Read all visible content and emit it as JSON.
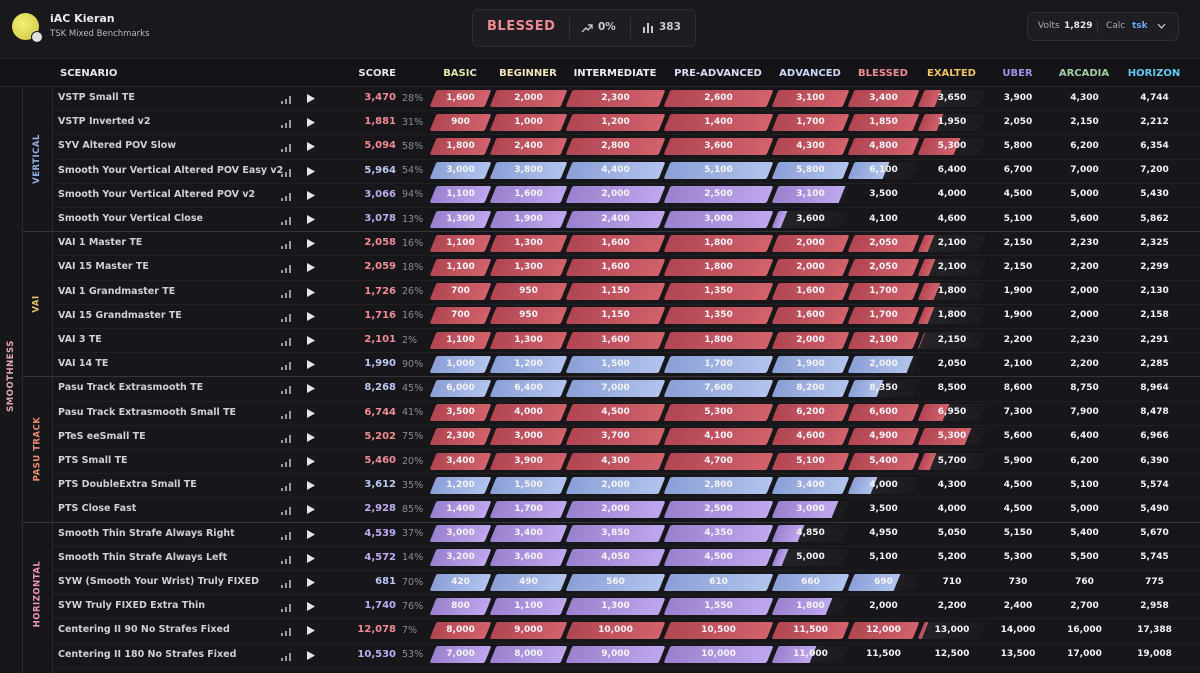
{
  "header": {
    "user_name": "iAC Kieran",
    "benchmark": "TSK Mixed Benchmarks",
    "rank": "BLESSED",
    "progress": "0%",
    "count": "383",
    "volts_label": "Volts",
    "volts": "1,829",
    "calc_label": "Calc",
    "calc": "tsk"
  },
  "table": {
    "columns": [
      "SCENARIO",
      "SCORE",
      "BASIC",
      "BEGINNER",
      "INTERMEDIATE",
      "PRE-ADVANCED",
      "ADVANCED",
      "BLESSED",
      "EXALTED",
      "UBER",
      "ARCADIA",
      "HORIZON"
    ],
    "category": "SMOOTHNESS",
    "groups": [
      {
        "label": "VERTICAL",
        "rows": [
          {
            "scenario": "VSTP Small TE",
            "score": "3,470",
            "percent": "28%",
            "thresholds": [
              "1,600",
              "2,000",
              "2,300",
              "2,600",
              "3,100",
              "3,400",
              "3,650",
              "3,900",
              "4,300",
              "4,744"
            ]
          },
          {
            "scenario": "VSTP Inverted v2",
            "score": "1,881",
            "percent": "31%",
            "thresholds": [
              "900",
              "1,000",
              "1,200",
              "1,400",
              "1,700",
              "1,850",
              "1,950",
              "2,050",
              "2,150",
              "2,212"
            ]
          },
          {
            "scenario": "SYV Altered POV Slow",
            "score": "5,094",
            "percent": "58%",
            "thresholds": [
              "1,800",
              "2,400",
              "2,800",
              "3,600",
              "4,300",
              "4,800",
              "5,300",
              "5,800",
              "6,200",
              "6,354"
            ]
          },
          {
            "scenario": "Smooth Your Vertical Altered POV Easy v2",
            "score": "5,964",
            "percent": "54%",
            "thresholds": [
              "3,000",
              "3,800",
              "4,400",
              "5,100",
              "5,800",
              "6,100",
              "6,400",
              "6,700",
              "7,000",
              "7,200"
            ]
          },
          {
            "scenario": "Smooth Your Vertical Altered POV v2",
            "score": "3,066",
            "percent": "94%",
            "thresholds": [
              "1,100",
              "1,600",
              "2,000",
              "2,500",
              "3,100",
              "3,500",
              "4,000",
              "4,500",
              "5,000",
              "5,430"
            ]
          },
          {
            "scenario": "Smooth Your Vertical Close",
            "score": "3,078",
            "percent": "13%",
            "thresholds": [
              "1,300",
              "1,900",
              "2,400",
              "3,000",
              "3,600",
              "4,100",
              "4,600",
              "5,100",
              "5,600",
              "5,862"
            ]
          }
        ]
      },
      {
        "label": "VAI",
        "rows": [
          {
            "scenario": "VAI 1 Master TE",
            "score": "2,058",
            "percent": "16%",
            "thresholds": [
              "1,100",
              "1,300",
              "1,600",
              "1,800",
              "2,000",
              "2,050",
              "2,100",
              "2,150",
              "2,230",
              "2,325"
            ]
          },
          {
            "scenario": "VAI 15 Master TE",
            "score": "2,059",
            "percent": "18%",
            "thresholds": [
              "1,100",
              "1,300",
              "1,600",
              "1,800",
              "2,000",
              "2,050",
              "2,100",
              "2,150",
              "2,200",
              "2,299"
            ]
          },
          {
            "scenario": "VAI 1 Grandmaster TE",
            "score": "1,726",
            "percent": "26%",
            "thresholds": [
              "700",
              "950",
              "1,150",
              "1,350",
              "1,600",
              "1,700",
              "1,800",
              "1,900",
              "2,000",
              "2,130"
            ]
          },
          {
            "scenario": "VAI 15 Grandmaster TE",
            "score": "1,716",
            "percent": "16%",
            "thresholds": [
              "700",
              "950",
              "1,150",
              "1,350",
              "1,600",
              "1,700",
              "1,800",
              "1,900",
              "2,000",
              "2,158"
            ]
          },
          {
            "scenario": "VAI 3 TE",
            "score": "2,101",
            "percent": "2%",
            "thresholds": [
              "1,100",
              "1,300",
              "1,600",
              "1,800",
              "2,000",
              "2,100",
              "2,150",
              "2,200",
              "2,230",
              "2,291"
            ]
          },
          {
            "scenario": "VAI 14 TE",
            "score": "1,990",
            "percent": "90%",
            "thresholds": [
              "1,000",
              "1,200",
              "1,500",
              "1,700",
              "1,900",
              "2,000",
              "2,050",
              "2,100",
              "2,200",
              "2,285"
            ]
          }
        ]
      },
      {
        "label": "PASU TRACK",
        "rows": [
          {
            "scenario": "Pasu Track Extrasmooth TE",
            "score": "8,268",
            "percent": "45%",
            "thresholds": [
              "6,000",
              "6,400",
              "7,000",
              "7,600",
              "8,200",
              "8,350",
              "8,500",
              "8,600",
              "8,750",
              "8,964"
            ]
          },
          {
            "scenario": "Pasu Track Extrasmooth Small TE",
            "score": "6,744",
            "percent": "41%",
            "thresholds": [
              "3,500",
              "4,000",
              "4,500",
              "5,300",
              "6,200",
              "6,600",
              "6,950",
              "7,300",
              "7,900",
              "8,478"
            ]
          },
          {
            "scenario": "PTeS eeSmall TE",
            "score": "5,202",
            "percent": "75%",
            "thresholds": [
              "2,300",
              "3,000",
              "3,700",
              "4,100",
              "4,600",
              "4,900",
              "5,300",
              "5,600",
              "6,400",
              "6,966"
            ]
          },
          {
            "scenario": "PTS Small TE",
            "score": "5,460",
            "percent": "20%",
            "thresholds": [
              "3,400",
              "3,900",
              "4,300",
              "4,700",
              "5,100",
              "5,400",
              "5,700",
              "5,900",
              "6,200",
              "6,390"
            ]
          },
          {
            "scenario": "PTS DoubleExtra Small TE",
            "score": "3,612",
            "percent": "35%",
            "thresholds": [
              "1,200",
              "1,500",
              "2,000",
              "2,800",
              "3,400",
              "4,000",
              "4,300",
              "4,500",
              "5,100",
              "5,574"
            ]
          },
          {
            "scenario": "PTS Close Fast",
            "score": "2,928",
            "percent": "85%",
            "thresholds": [
              "1,400",
              "1,700",
              "2,000",
              "2,500",
              "3,000",
              "3,500",
              "4,000",
              "4,500",
              "5,000",
              "5,490"
            ]
          }
        ]
      },
      {
        "label": "HORIZONTAL",
        "rows": [
          {
            "scenario": "Smooth Thin Strafe Always Right",
            "score": "4,539",
            "percent": "37%",
            "thresholds": [
              "3,000",
              "3,400",
              "3,850",
              "4,350",
              "4,850",
              "4,950",
              "5,050",
              "5,150",
              "5,400",
              "5,670"
            ]
          },
          {
            "scenario": "Smooth Thin Strafe Always Left",
            "score": "4,572",
            "percent": "14%",
            "thresholds": [
              "3,200",
              "3,600",
              "4,050",
              "4,500",
              "5,000",
              "5,100",
              "5,200",
              "5,300",
              "5,500",
              "5,745"
            ]
          },
          {
            "scenario": "SYW (Smooth Your Wrist) Truly FIXED",
            "score": "681",
            "percent": "70%",
            "thresholds": [
              "420",
              "490",
              "560",
              "610",
              "660",
              "690",
              "710",
              "730",
              "760",
              "775"
            ]
          },
          {
            "scenario": "SYW Truly FIXED Extra Thin",
            "score": "1,740",
            "percent": "76%",
            "thresholds": [
              "800",
              "1,100",
              "1,300",
              "1,550",
              "1,800",
              "2,000",
              "2,200",
              "2,400",
              "2,700",
              "2,958"
            ]
          },
          {
            "scenario": "Centering II 90 No Strafes Fixed",
            "score": "12,078",
            "percent": "7%",
            "thresholds": [
              "8,000",
              "9,000",
              "10,000",
              "10,500",
              "11,500",
              "12,000",
              "13,000",
              "14,000",
              "16,000",
              "17,388"
            ]
          },
          {
            "scenario": "Centering II 180 No Strafes Fixed",
            "score": "10,530",
            "percent": "53%",
            "thresholds": [
              "7,000",
              "8,000",
              "9,000",
              "10,000",
              "11,000",
              "11,500",
              "12,500",
              "13,500",
              "17,000",
              "19,008"
            ]
          }
        ]
      }
    ]
  }
}
